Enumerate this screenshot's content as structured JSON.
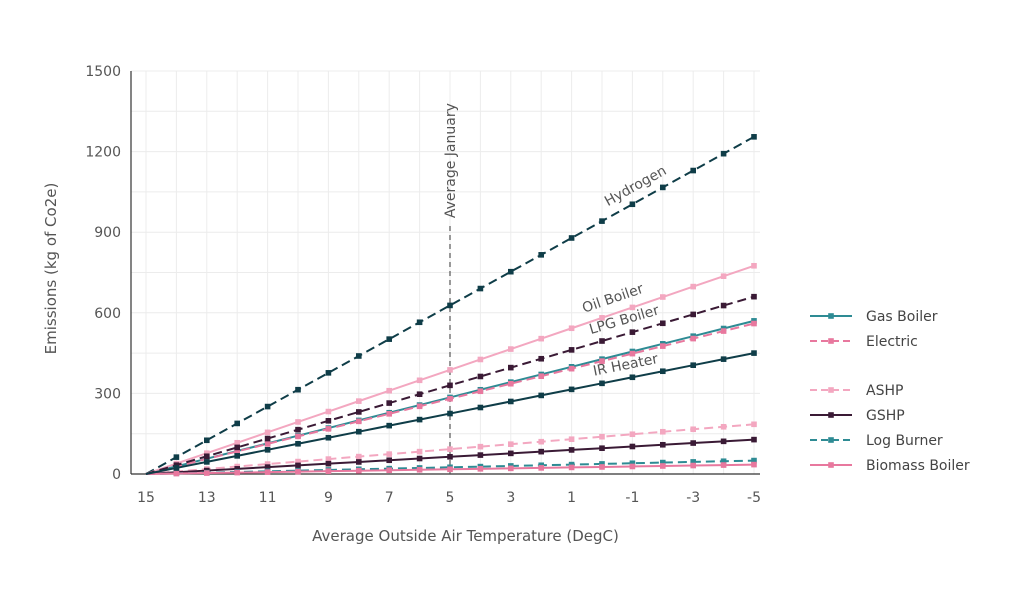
{
  "chart_data": {
    "type": "line",
    "title": "",
    "xlabel": "Average Outside Air Temperature (DegC)",
    "ylabel": "Emissions (kg of Co2e)",
    "x": [
      15,
      14,
      13,
      12,
      11,
      10,
      9,
      8,
      7,
      6,
      5,
      4,
      3,
      2,
      1,
      0,
      -1,
      -2,
      -3,
      -4,
      -5
    ],
    "x_tick_labels": [
      "15",
      "13",
      "11",
      "9",
      "7",
      "5",
      "3",
      "1",
      "-1",
      "-3",
      "-5"
    ],
    "xlim": [
      15,
      -5
    ],
    "ylim": [
      0,
      1500
    ],
    "y_ticks": [
      0,
      300,
      600,
      900,
      1200,
      1500
    ],
    "grid": true,
    "legend_position": "right",
    "series": [
      {
        "name": "Gas Boiler",
        "color": "#2e8b94",
        "dash": "solid",
        "values": [
          0,
          28.5,
          57,
          85.5,
          114,
          142.5,
          171,
          199.5,
          228,
          256.5,
          285,
          313.5,
          342,
          370.5,
          399,
          427.5,
          456,
          484.5,
          513,
          541.5,
          570
        ]
      },
      {
        "name": "Electric",
        "color": "#e8789e",
        "dash": "dashed",
        "values": [
          0,
          28,
          56,
          84,
          112,
          140,
          168,
          196,
          224,
          252,
          280,
          308,
          336,
          364,
          392,
          420,
          448,
          476,
          504,
          532,
          560
        ]
      },
      {
        "name": "ASHP",
        "color": "#f3a7c0",
        "dash": "dashed",
        "values": [
          0,
          9.25,
          18.5,
          27.75,
          37,
          46.25,
          55.5,
          64.75,
          74,
          83.25,
          92.5,
          101.75,
          111,
          120.25,
          129.5,
          138.75,
          148,
          157.25,
          166.5,
          175.75,
          185
        ]
      },
      {
        "name": "GSHP",
        "color": "#3a1a35",
        "dash": "solid",
        "values": [
          0,
          6.4,
          12.8,
          19.2,
          25.6,
          32,
          38.4,
          44.8,
          51.2,
          57.6,
          64,
          70.4,
          76.8,
          83.2,
          89.6,
          96,
          102.4,
          108.8,
          115.2,
          121.6,
          128
        ]
      },
      {
        "name": "Log Burner",
        "color": "#2e8b94",
        "dash": "dashed",
        "values": [
          0,
          2.5,
          5,
          7.5,
          10,
          12.5,
          15,
          17.5,
          20,
          22.5,
          25,
          27.5,
          30,
          32.5,
          35,
          37.5,
          40,
          42.5,
          45,
          47.5,
          50
        ]
      },
      {
        "name": "Biomass Boiler",
        "color": "#e8789e",
        "dash": "solid",
        "values": [
          0,
          1.75,
          3.5,
          5.25,
          7,
          8.75,
          10.5,
          12.25,
          14,
          15.75,
          17.5,
          19.25,
          21,
          22.75,
          24.5,
          26.25,
          28,
          29.75,
          31.5,
          33.25,
          35
        ]
      },
      {
        "name": "Hydrogen",
        "color": "#0f3d48",
        "dash": "dashed",
        "values": [
          0,
          62.75,
          125.5,
          188.25,
          251,
          313.75,
          376.5,
          439.25,
          502,
          564.75,
          627.5,
          690.25,
          753,
          815.75,
          878.5,
          941.25,
          1004,
          1066.75,
          1129.5,
          1192.25,
          1255
        ]
      },
      {
        "name": "Oil Boiler",
        "color": "#f3a7c0",
        "dash": "solid",
        "values": [
          0,
          38.75,
          77.5,
          116.25,
          155,
          193.75,
          232.5,
          271.25,
          310,
          348.75,
          387.5,
          426.25,
          465,
          503.75,
          542.5,
          581.25,
          620,
          658.75,
          697.5,
          736.25,
          775
        ]
      },
      {
        "name": "LPG Boiler",
        "color": "#3a1a35",
        "dash": "dashed",
        "values": [
          0,
          33,
          66,
          99,
          132,
          165,
          198,
          231,
          264,
          297,
          330,
          363,
          396,
          429,
          462,
          495,
          528,
          561,
          594,
          627,
          660
        ]
      },
      {
        "name": "IR Heater",
        "color": "#0f3d48",
        "dash": "solid",
        "values": [
          0,
          22.5,
          45,
          67.5,
          90,
          112.5,
          135,
          157.5,
          180,
          202.5,
          225,
          247.5,
          270,
          292.5,
          315,
          337.5,
          360,
          382.5,
          405,
          427.5,
          450
        ]
      }
    ],
    "legend": [
      {
        "name": "Gas Boiler",
        "color": "#2e8b94",
        "dash": "solid"
      },
      {
        "name": "Electric",
        "color": "#e8789e",
        "dash": "dashed"
      },
      {
        "name": "ASHP",
        "color": "#f3a7c0",
        "dash": "dashed"
      },
      {
        "name": "GSHP",
        "color": "#3a1a35",
        "dash": "solid"
      },
      {
        "name": "Log Burner",
        "color": "#2e8b94",
        "dash": "dashed"
      },
      {
        "name": "Biomass Boiler",
        "color": "#e8789e",
        "dash": "solid"
      }
    ],
    "line_labels": [
      {
        "text": "Hydrogen",
        "series": "Hydrogen",
        "at_x": -1.5
      },
      {
        "text": "Oil Boiler",
        "series": "Oil Boiler",
        "at_x": -0.6
      },
      {
        "text": "LPG Boiler",
        "series": "LPG Boiler",
        "at_x": -0.9
      },
      {
        "text": "IR Heater",
        "series": "IR Heater",
        "at_x": -1.0
      }
    ],
    "annotations": [
      {
        "text": "Average January",
        "x": 5,
        "y_from": 0,
        "y_to": 930
      }
    ]
  }
}
